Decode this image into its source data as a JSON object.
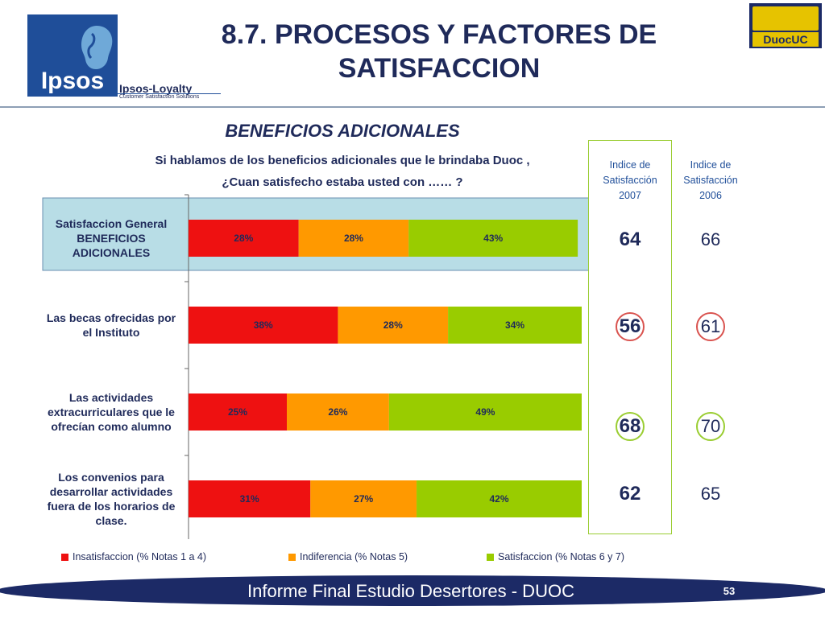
{
  "header": {
    "title": "8.7. PROCESOS Y FACTORES DE\nSATISFACCION",
    "ipsos_logo_text": "Ipsos",
    "loyalty_title": "Ipsos-Loyalty",
    "loyalty_subtitle": "Customer Satisfaction Solutions",
    "duoc_logo_text": "DuocUC"
  },
  "chart_heading": {
    "subtitle": "BENEFICIOS ADICIONALES",
    "question": "Si hablamos de los beneficios adicionales que le brindaba Duoc ,\n¿Cuan satisfecho estaba usted con …… ?"
  },
  "index": {
    "head_2007": "Indice de\nSatisfacción\n2007",
    "head_2006": "Indice de\nSatisfacción\n2006",
    "values_2007": [
      "64",
      "56",
      "68",
      "62"
    ],
    "values_2006": [
      "66",
      "61",
      "70",
      "65"
    ]
  },
  "legend": {
    "items": [
      {
        "label": "Insatisfaccion (% Notas 1 a 4)",
        "color": "#ee1111"
      },
      {
        "label": "Indiferencia (% Notas 5)",
        "color": "#ff9900"
      },
      {
        "label": "Satisfaccion (% Notas 6 y 7)",
        "color": "#99cc00"
      }
    ]
  },
  "footer": {
    "text": "Informe Final Estudio Desertores - DUOC",
    "page_number": "53"
  },
  "chart_data": {
    "type": "bar",
    "orientation": "horizontal",
    "stacked": true,
    "categories": [
      "Satisfaccion General BENEFICIOS ADICIONALES",
      "Las becas ofrecidas por el Instituto",
      "Las actividades extracurriculares que le ofrecían como alumno",
      "Los convenios para desarrollar actividades fuera de los horarios de clase."
    ],
    "category_lines": [
      [
        "Satisfaccion General",
        "BENEFICIOS",
        "ADICIONALES"
      ],
      [
        "Las becas ofrecidas por",
        "el Instituto"
      ],
      [
        "Las actividades",
        "extracurriculares que le",
        "ofrecían como alumno"
      ],
      [
        "Los convenios para",
        "desarrollar actividades",
        "fuera de los horarios de",
        "clase."
      ]
    ],
    "series": [
      {
        "name": "Insatisfaccion (% Notas 1 a 4)",
        "values": [
          28,
          38,
          25,
          31
        ],
        "color": "#ee1111"
      },
      {
        "name": "Indiferencia (% Notas 5)",
        "values": [
          28,
          28,
          26,
          27
        ],
        "color": "#ff9900"
      },
      {
        "name": "Satisfaccion (% Notas 6 y 7)",
        "values": [
          43,
          34,
          49,
          42
        ],
        "color": "#99cc00"
      }
    ],
    "value_suffix": "%",
    "xlim": [
      0,
      100
    ],
    "highlight_category": 0,
    "highlight_color": "#b8dde6"
  }
}
